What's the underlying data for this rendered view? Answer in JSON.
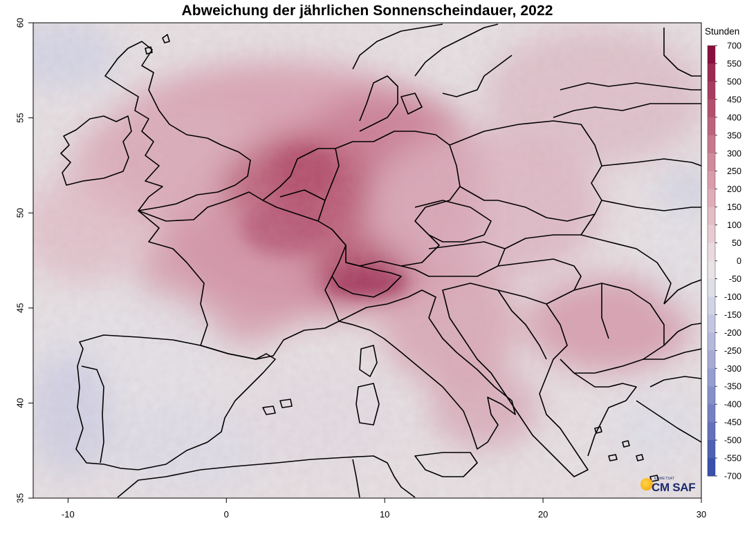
{
  "title": "Abweichung der jährlichen Sonnenscheindauer, 2022",
  "map": {
    "lon_range": [
      -12.2,
      30
    ],
    "lat_range": [
      35,
      60
    ],
    "x_ticks": [
      {
        "value": -10,
        "label": "-10"
      },
      {
        "value": 0,
        "label": "0"
      },
      {
        "value": 10,
        "label": "10"
      },
      {
        "value": 20,
        "label": "20"
      },
      {
        "value": 30,
        "label": "30"
      }
    ],
    "y_ticks": [
      {
        "value": 35,
        "label": "35"
      },
      {
        "value": 40,
        "label": "40"
      },
      {
        "value": 45,
        "label": "45"
      },
      {
        "value": 50,
        "label": "50"
      },
      {
        "value": 55,
        "label": "55"
      },
      {
        "value": 60,
        "label": "60"
      }
    ],
    "projection": "equirectangular",
    "background_color": "#e6e1e3",
    "border_color": "#000000",
    "high_anomaly_areas": [
      {
        "region": "Benelux / Northern France / Western Germany",
        "level": "+350 to +500"
      },
      {
        "region": "Alps / Switzerland / Northern Italy",
        "level": "+400 to +550"
      },
      {
        "region": "Southern England",
        "level": "+200 to +300"
      },
      {
        "region": "Romania / Eastern Balkans",
        "level": "+200 to +300"
      }
    ],
    "low_anomaly_areas": [
      {
        "region": "Western Iberia / Portugal",
        "level": "-50 to -150"
      },
      {
        "region": "North Atlantic west of Scotland",
        "level": "-50 to -100"
      },
      {
        "region": "Ukraine (east edge)",
        "level": "-50 to -150"
      }
    ]
  },
  "legend": {
    "title": "Stunden",
    "items": [
      {
        "label": "700",
        "color": "#8a0f3c"
      },
      {
        "label": "550",
        "color": "#9c2a52"
      },
      {
        "label": "500",
        "color": "#a83c60"
      },
      {
        "label": "450",
        "color": "#b3506e"
      },
      {
        "label": "400",
        "color": "#be637e"
      },
      {
        "label": "350",
        "color": "#c8778d"
      },
      {
        "label": "300",
        "color": "#d18a9c"
      },
      {
        "label": "250",
        "color": "#d99cab"
      },
      {
        "label": "200",
        "color": "#dfadb9"
      },
      {
        "label": "150",
        "color": "#e4bcc6"
      },
      {
        "label": "100",
        "color": "#e8cbd2"
      },
      {
        "label": "50",
        "color": "#eadadf"
      },
      {
        "label": "0",
        "color": "#e8e4e6"
      },
      {
        "label": "-50",
        "color": "#dfdfe8"
      },
      {
        "label": "-100",
        "color": "#d2d3e5"
      },
      {
        "label": "-150",
        "color": "#c4c6e1"
      },
      {
        "label": "-200",
        "color": "#b5b9dc"
      },
      {
        "label": "-250",
        "color": "#a6abd6"
      },
      {
        "label": "-300",
        "color": "#969dd0"
      },
      {
        "label": "-350",
        "color": "#868fca"
      },
      {
        "label": "-400",
        "color": "#7580c3"
      },
      {
        "label": "-450",
        "color": "#6371bc"
      },
      {
        "label": "-500",
        "color": "#4f61b4"
      },
      {
        "label": "-550",
        "color": "#3a50ad"
      },
      {
        "label": "-700",
        "color": "#1f3aa2"
      }
    ]
  },
  "logo": {
    "top_text": "EUMETSAT",
    "main_text": "CM SAF"
  }
}
